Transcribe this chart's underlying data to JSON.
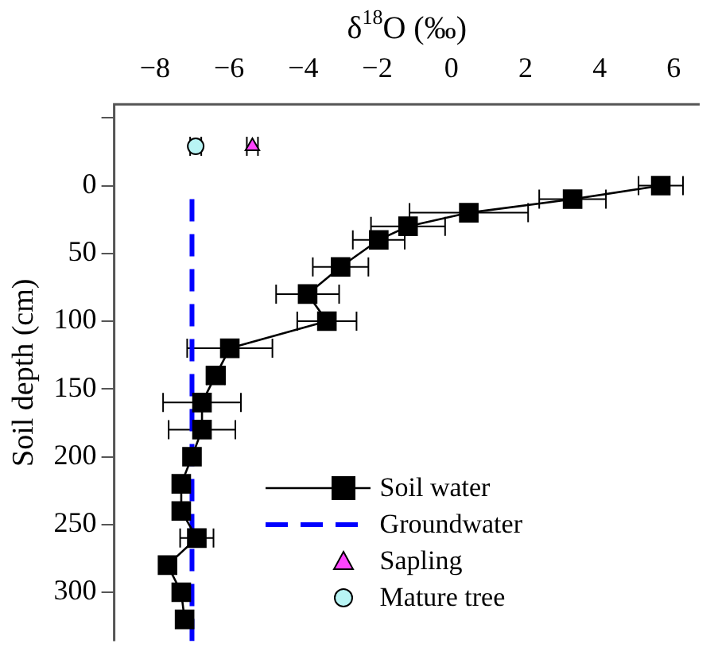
{
  "chart_data": {
    "type": "scatter",
    "xlabel": "δ$^{18}$O (‰)",
    "ylabel": "Soil depth (cm)",
    "xlim": [
      -9.1,
      6.7
    ],
    "xticks": [
      -8,
      -6,
      -4,
      -2,
      0,
      2,
      4,
      6
    ],
    "ylim": [
      336,
      -60
    ],
    "yticks": [
      {
        "value": -50,
        "label": null
      },
      0,
      50,
      100,
      150,
      200,
      250,
      300
    ],
    "legend": "bottom right",
    "grid": false,
    "series": [
      {
        "name": "Soil water",
        "type": "line",
        "color": "#000000",
        "marker": "square",
        "line_style": "solid",
        "x": [
          5.65,
          3.27,
          0.47,
          -1.17,
          -1.96,
          -2.99,
          -3.88,
          -3.36,
          -5.98,
          -6.36,
          -6.73,
          -6.73,
          -7.0,
          -7.29,
          -7.29,
          -6.87,
          -7.66,
          -7.29,
          -7.2
        ],
        "values": [
          0,
          10,
          20,
          30,
          40,
          60,
          80,
          100,
          120,
          140,
          160,
          180,
          200,
          220,
          240,
          260,
          280,
          300,
          320
        ],
        "xerrors": [
          0.6,
          0.9,
          1.6,
          1.0,
          0.7,
          0.75,
          0.85,
          0.8,
          1.15,
          0.25,
          1.05,
          0.9,
          null,
          null,
          null,
          0.45,
          null,
          null,
          null
        ]
      },
      {
        "name": "Groundwater",
        "type": "line",
        "color": "#0000ff",
        "marker": "none",
        "line_style": "dashed",
        "x": [
          -7.0,
          -7.0
        ],
        "values": [
          10,
          336
        ]
      },
      {
        "name": "Sapling",
        "type": "scatter",
        "color": "#ff44ff",
        "marker": "triangle",
        "x": [
          -5.37
        ],
        "values": [
          -29
        ],
        "xerrors": [
          0.15
        ]
      },
      {
        "name": "Mature tree",
        "type": "scatter",
        "color": "#b8f4f4",
        "marker": "circle",
        "x": [
          -6.9
        ],
        "values": [
          -29
        ],
        "xerrors": [
          0.15
        ]
      }
    ]
  }
}
